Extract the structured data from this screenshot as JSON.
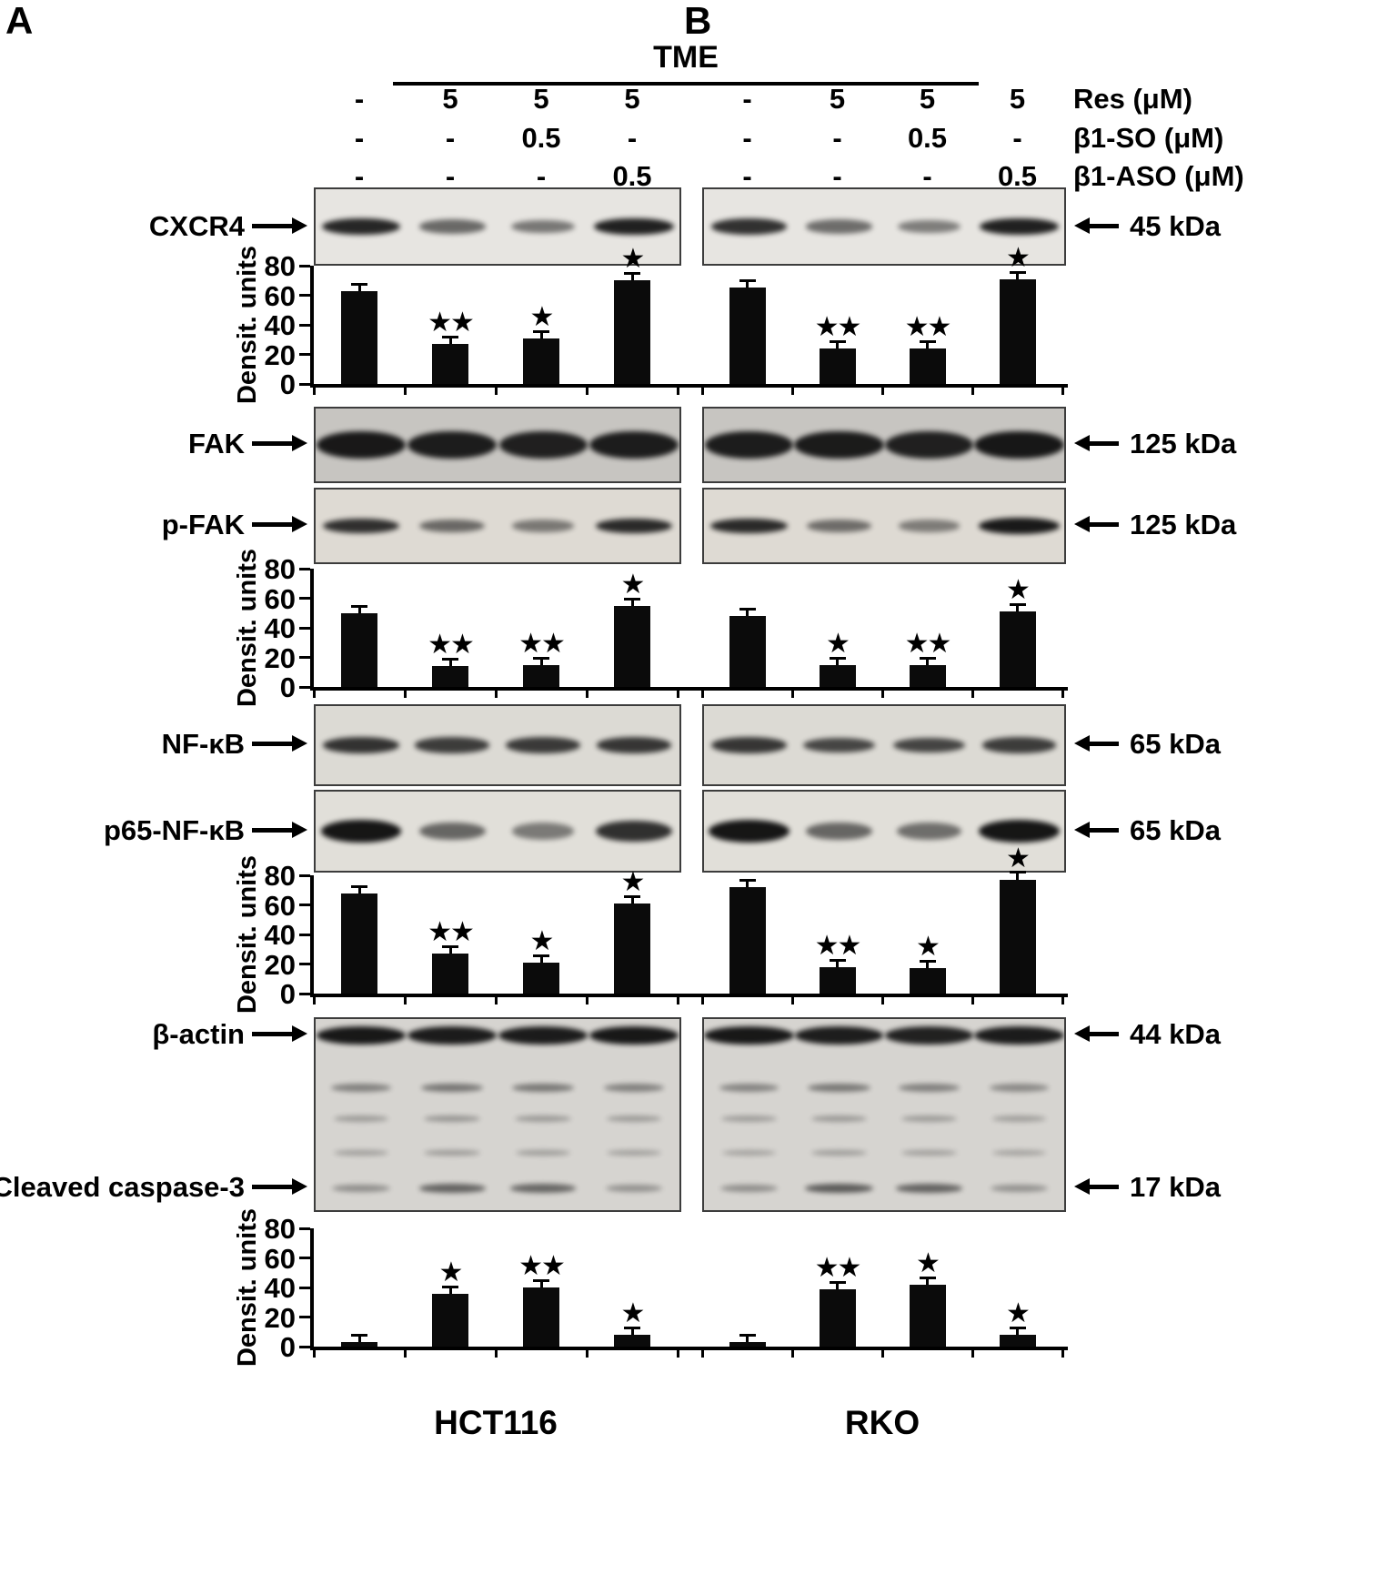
{
  "figure": {
    "panel_a": "A",
    "panel_b": "B",
    "header_group": "TME",
    "footer": {
      "panel_a_cell_line": "HCT116",
      "panel_b_cell_line": "RKO"
    }
  },
  "treatments": [
    {
      "label": "Res (μM)",
      "a": [
        "-",
        "5",
        "5",
        "5"
      ],
      "b": [
        "-",
        "5",
        "5",
        "5"
      ]
    },
    {
      "label": "β1-SO (μM)",
      "a": [
        "-",
        "-",
        "0.5",
        "-"
      ],
      "b": [
        "-",
        "-",
        "0.5",
        "-"
      ]
    },
    {
      "label": "β1-ASO (μM)",
      "a": [
        "-",
        "-",
        "-",
        "0.5"
      ],
      "b": [
        "-",
        "-",
        "-",
        "0.5"
      ]
    }
  ],
  "blots": [
    {
      "id": "cxcr4",
      "label": "CXCR4",
      "kda": "45 kDa",
      "bg": "#e7e5e1",
      "rows": [
        {
          "y": 0.5,
          "h": 16,
          "a": [
            0.88,
            0.5,
            0.42,
            0.92
          ],
          "b": [
            0.82,
            0.48,
            0.38,
            0.92
          ]
        }
      ]
    },
    {
      "id": "fak",
      "label": "FAK",
      "kda": "125 kDa",
      "bg": "#c7c5c1",
      "rows": [
        {
          "y": 0.5,
          "h": 26,
          "wide": true,
          "a": [
            0.95,
            0.93,
            0.9,
            0.93
          ],
          "b": [
            0.93,
            0.94,
            0.9,
            0.96
          ]
        }
      ]
    },
    {
      "id": "pfak",
      "label": "p-FAK",
      "kda": "125 kDa",
      "bg": "#dedad3",
      "rows": [
        {
          "y": 0.5,
          "h": 15,
          "a": [
            0.82,
            0.48,
            0.38,
            0.85
          ],
          "b": [
            0.85,
            0.45,
            0.35,
            0.95
          ]
        }
      ]
    },
    {
      "id": "nfkb",
      "label": "NF-κB",
      "kda": "65 kDa",
      "bg": "#dcdad4",
      "rows": [
        {
          "y": 0.5,
          "h": 16,
          "a": [
            0.8,
            0.74,
            0.76,
            0.78
          ],
          "b": [
            0.78,
            0.68,
            0.7,
            0.74
          ]
        }
      ]
    },
    {
      "id": "p65",
      "label": "p65-NF-κB",
      "kda": "65 kDa",
      "bg": "#e1dfd9",
      "rows": [
        {
          "y": 0.5,
          "h": 21,
          "a": [
            0.97,
            0.5,
            0.38,
            0.82
          ],
          "b": [
            0.97,
            0.5,
            0.45,
            0.98
          ]
        }
      ]
    },
    {
      "id": "actin",
      "label": "β-actin",
      "label2": "Cleaved caspase-3",
      "kda": "44 kDa",
      "kda2": "17 kDa",
      "bg": "#d6d4d0",
      "rows": [
        {
          "y": 0.085,
          "h": 17,
          "wide": true,
          "a": [
            0.96,
            0.94,
            0.94,
            0.96
          ],
          "b": [
            0.96,
            0.93,
            0.9,
            0.94
          ]
        },
        {
          "y": 0.36,
          "h": 11,
          "a": [
            0.3,
            0.38,
            0.36,
            0.3
          ],
          "b": [
            0.28,
            0.36,
            0.3,
            0.26
          ]
        },
        {
          "y": 0.52,
          "h": 9,
          "a": [
            0.14,
            0.17,
            0.15,
            0.13
          ],
          "b": [
            0.12,
            0.15,
            0.13,
            0.11
          ]
        },
        {
          "y": 0.7,
          "h": 9,
          "a": [
            0.12,
            0.15,
            0.13,
            0.11
          ],
          "b": [
            0.1,
            0.13,
            0.12,
            0.1
          ]
        },
        {
          "y": 0.885,
          "h": 10,
          "a": [
            0.22,
            0.5,
            0.48,
            0.2
          ],
          "b": [
            0.22,
            0.55,
            0.5,
            0.2
          ]
        }
      ]
    }
  ],
  "chart_data": [
    {
      "type": "bar",
      "id": "chart-cxcr4",
      "protein": "CXCR4",
      "ylabel": "Densit. units",
      "ylim": [
        0,
        80
      ],
      "yticks": [
        0,
        20,
        40,
        60,
        80
      ],
      "groups": [
        {
          "panel": "A",
          "cell_line": "HCT116",
          "values": [
            63,
            27,
            31,
            70
          ],
          "errors": [
            3,
            2,
            2,
            3
          ],
          "annotations": [
            "",
            "★★",
            "★",
            "★"
          ]
        },
        {
          "panel": "B",
          "cell_line": "RKO",
          "values": [
            65,
            24,
            24,
            71
          ],
          "errors": [
            3,
            2,
            2,
            3
          ],
          "annotations": [
            "",
            "★★",
            "★★",
            "★"
          ]
        }
      ]
    },
    {
      "type": "bar",
      "id": "chart-pfak",
      "protein": "p-FAK",
      "ylabel": "Densit. units",
      "ylim": [
        0,
        80
      ],
      "yticks": [
        0,
        20,
        40,
        60,
        80
      ],
      "groups": [
        {
          "panel": "A",
          "cell_line": "HCT116",
          "values": [
            50,
            14,
            15,
            55
          ],
          "errors": [
            3,
            1,
            1,
            3
          ],
          "annotations": [
            "",
            "★★",
            "★★",
            "★"
          ]
        },
        {
          "panel": "B",
          "cell_line": "RKO",
          "values": [
            48,
            15,
            15,
            51
          ],
          "errors": [
            3,
            1,
            1,
            3
          ],
          "annotations": [
            "",
            "★",
            "★★",
            "★"
          ]
        }
      ]
    },
    {
      "type": "bar",
      "id": "chart-p65",
      "protein": "p65-NF-κB",
      "ylabel": "Densit. units",
      "ylim": [
        0,
        80
      ],
      "yticks": [
        0,
        20,
        40,
        60,
        80
      ],
      "groups": [
        {
          "panel": "A",
          "cell_line": "HCT116",
          "values": [
            68,
            27,
            21,
            61
          ],
          "errors": [
            3,
            2,
            2,
            3
          ],
          "annotations": [
            "",
            "★★",
            "★",
            "★"
          ]
        },
        {
          "panel": "B",
          "cell_line": "RKO",
          "values": [
            72,
            18,
            17,
            77
          ],
          "errors": [
            3,
            2,
            2,
            4
          ],
          "annotations": [
            "",
            "★★",
            "★",
            "★"
          ]
        }
      ]
    },
    {
      "type": "bar",
      "id": "chart-casp3",
      "protein": "Cleaved caspase-3",
      "ylabel": "Densit. units",
      "ylim": [
        0,
        80
      ],
      "yticks": [
        0,
        20,
        40,
        60,
        80
      ],
      "groups": [
        {
          "panel": "A",
          "cell_line": "HCT116",
          "values": [
            3,
            36,
            40,
            8
          ],
          "errors": [
            1,
            2,
            2,
            1
          ],
          "annotations": [
            "",
            "★",
            "★★",
            "★"
          ]
        },
        {
          "panel": "B",
          "cell_line": "RKO",
          "values": [
            3,
            39,
            42,
            8
          ],
          "errors": [
            1,
            2,
            2,
            1
          ],
          "annotations": [
            "",
            "★★",
            "★",
            "★"
          ]
        }
      ]
    }
  ]
}
